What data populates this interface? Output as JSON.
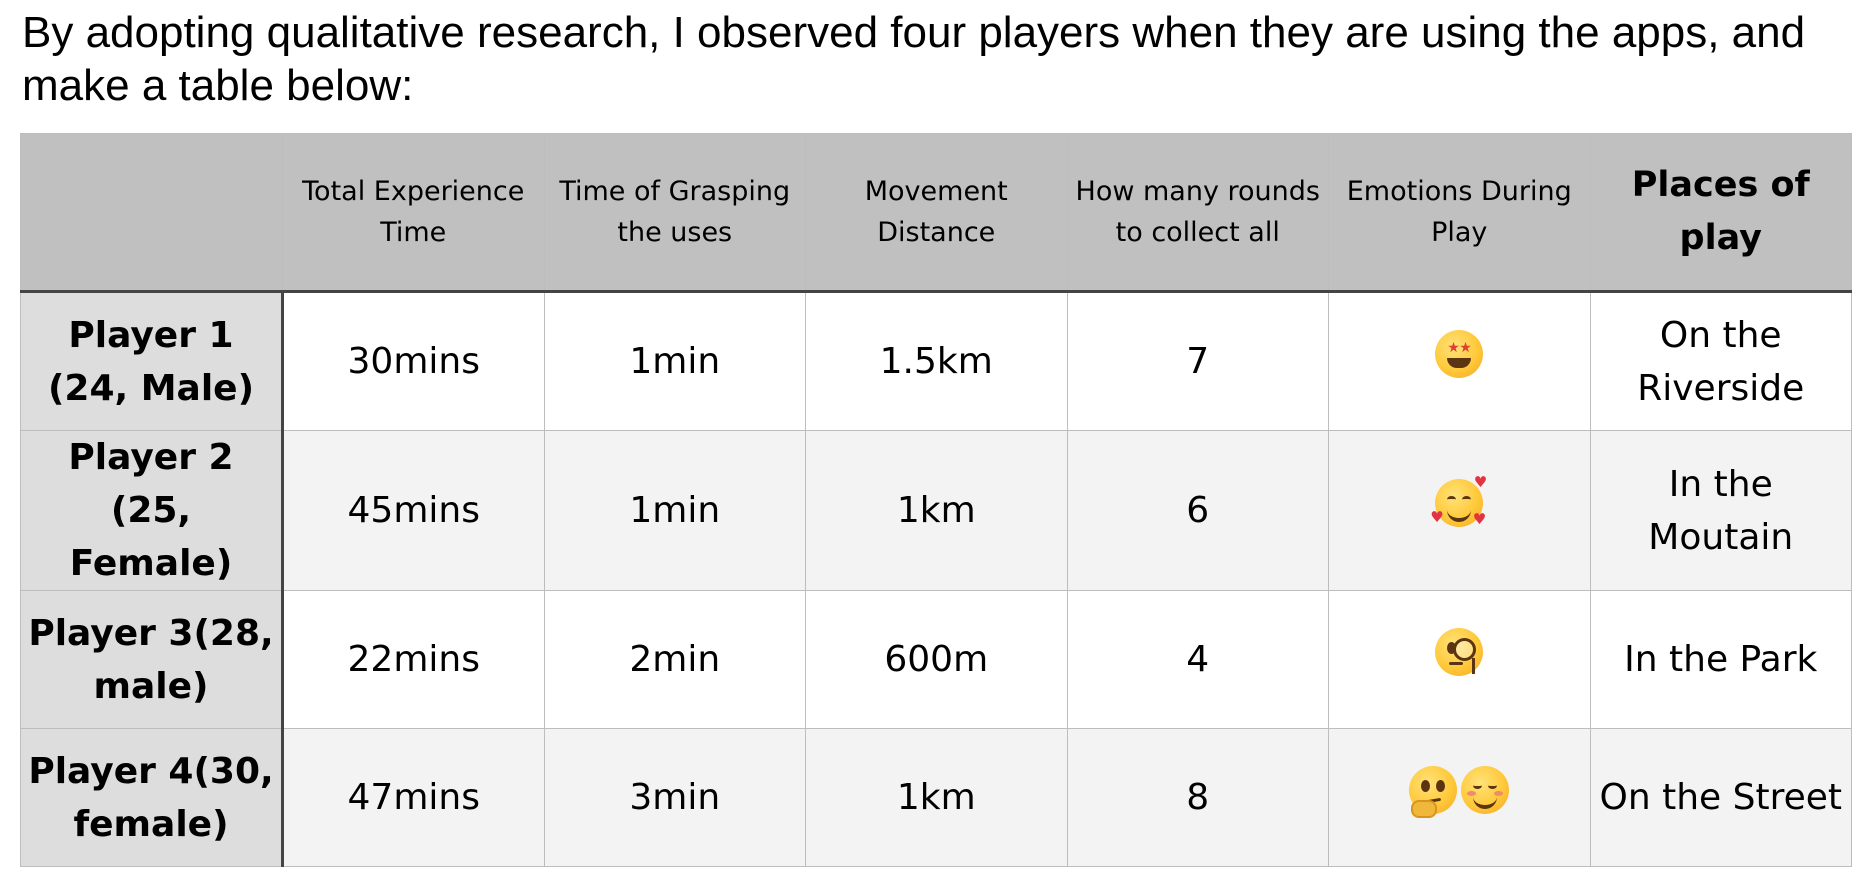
{
  "intro_text": "By adopting qualitative research, I observed four players when they are using the apps, and make a table below:",
  "table": {
    "headers": [
      "",
      "Total Experience Time",
      "Time of Grasping the uses",
      "Movement Distance",
      "How many rounds to collect all",
      "Emotions During Play",
      "Places of play"
    ],
    "rows": [
      {
        "player": "Player 1 (24, Male)",
        "total_time": "30mins",
        "grasp_time": "1min",
        "distance": "1.5km",
        "rounds": "7",
        "emotions": [
          "star-struck-emoji-icon"
        ],
        "place": "On the Riverside"
      },
      {
        "player": "Player 2 (25, Female)",
        "total_time": "45mins",
        "grasp_time": "1min",
        "distance": "1km",
        "rounds": "6",
        "emotions": [
          "smiling-face-with-hearts-emoji-icon"
        ],
        "place": "In the Moutain"
      },
      {
        "player": "Player 3(28, male)",
        "total_time": "22mins",
        "grasp_time": "2min",
        "distance": "600m",
        "rounds": "4",
        "emotions": [
          "face-with-monocle-emoji-icon"
        ],
        "place": "In the Park"
      },
      {
        "player": "Player 4(30, female)",
        "total_time": "47mins",
        "grasp_time": "3min",
        "distance": "1km",
        "rounds": "8",
        "emotions": [
          "thinking-face-emoji-icon",
          "relieved-face-emoji-icon"
        ],
        "place": "On the Street"
      }
    ]
  },
  "colors": {
    "header_bg": "#bfc0bf",
    "player_col_bg": "#dddddd",
    "row_even_bg": "#f3f3f3",
    "row_odd_bg": "#ffffff",
    "divider": "#444444",
    "grid": "#bdbdbd"
  }
}
